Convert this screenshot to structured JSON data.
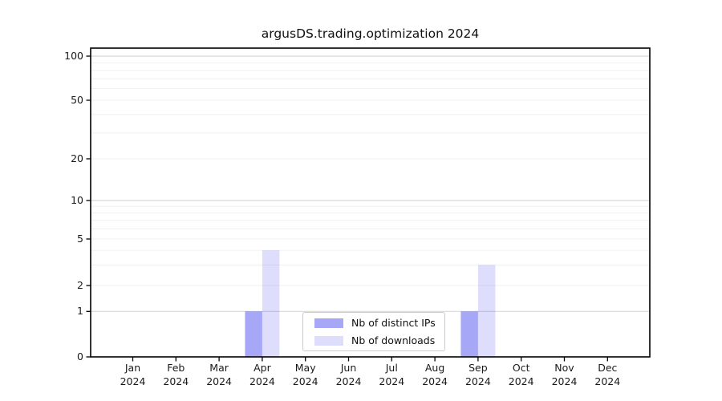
{
  "chart_data": {
    "type": "bar",
    "title": "argusDS.trading.optimization 2024",
    "categories": [
      "Jan",
      "Feb",
      "Mar",
      "Apr",
      "May",
      "Jun",
      "Jul",
      "Aug",
      "Sep",
      "Oct",
      "Nov",
      "Dec"
    ],
    "year_label": "2024",
    "series": [
      {
        "name": "Nb of distinct IPs",
        "color": "rgba(34,34,238,0.40)",
        "values": [
          0,
          0,
          0,
          1,
          0,
          0,
          0,
          0,
          1,
          0,
          0,
          0
        ]
      },
      {
        "name": "Nb of downloads",
        "color": "rgba(34,34,238,0.15)",
        "values": [
          0,
          0,
          0,
          4,
          0,
          0,
          0,
          0,
          3,
          0,
          0,
          0
        ]
      }
    ],
    "y_axis": {
      "scale": "log above 1, linear 0-1",
      "tick_values": [
        0,
        1,
        2,
        5,
        10,
        20,
        50,
        100
      ],
      "minor_grid_values": [
        2,
        3,
        4,
        5,
        6,
        7,
        8,
        9,
        20,
        30,
        40,
        50,
        60,
        70,
        80,
        90
      ],
      "major_grid_values": [
        1,
        10,
        100
      ],
      "ylim": [
        0,
        113
      ],
      "grid": true
    },
    "legend": {
      "position": "lower center inside plot",
      "items": [
        "Nb of distinct IPs",
        "Nb of downloads"
      ]
    },
    "colors": {
      "major_grid": "#d8d8d8",
      "minor_grid": "#f0f0f0",
      "axis": "#000000",
      "background": "#ffffff"
    }
  }
}
